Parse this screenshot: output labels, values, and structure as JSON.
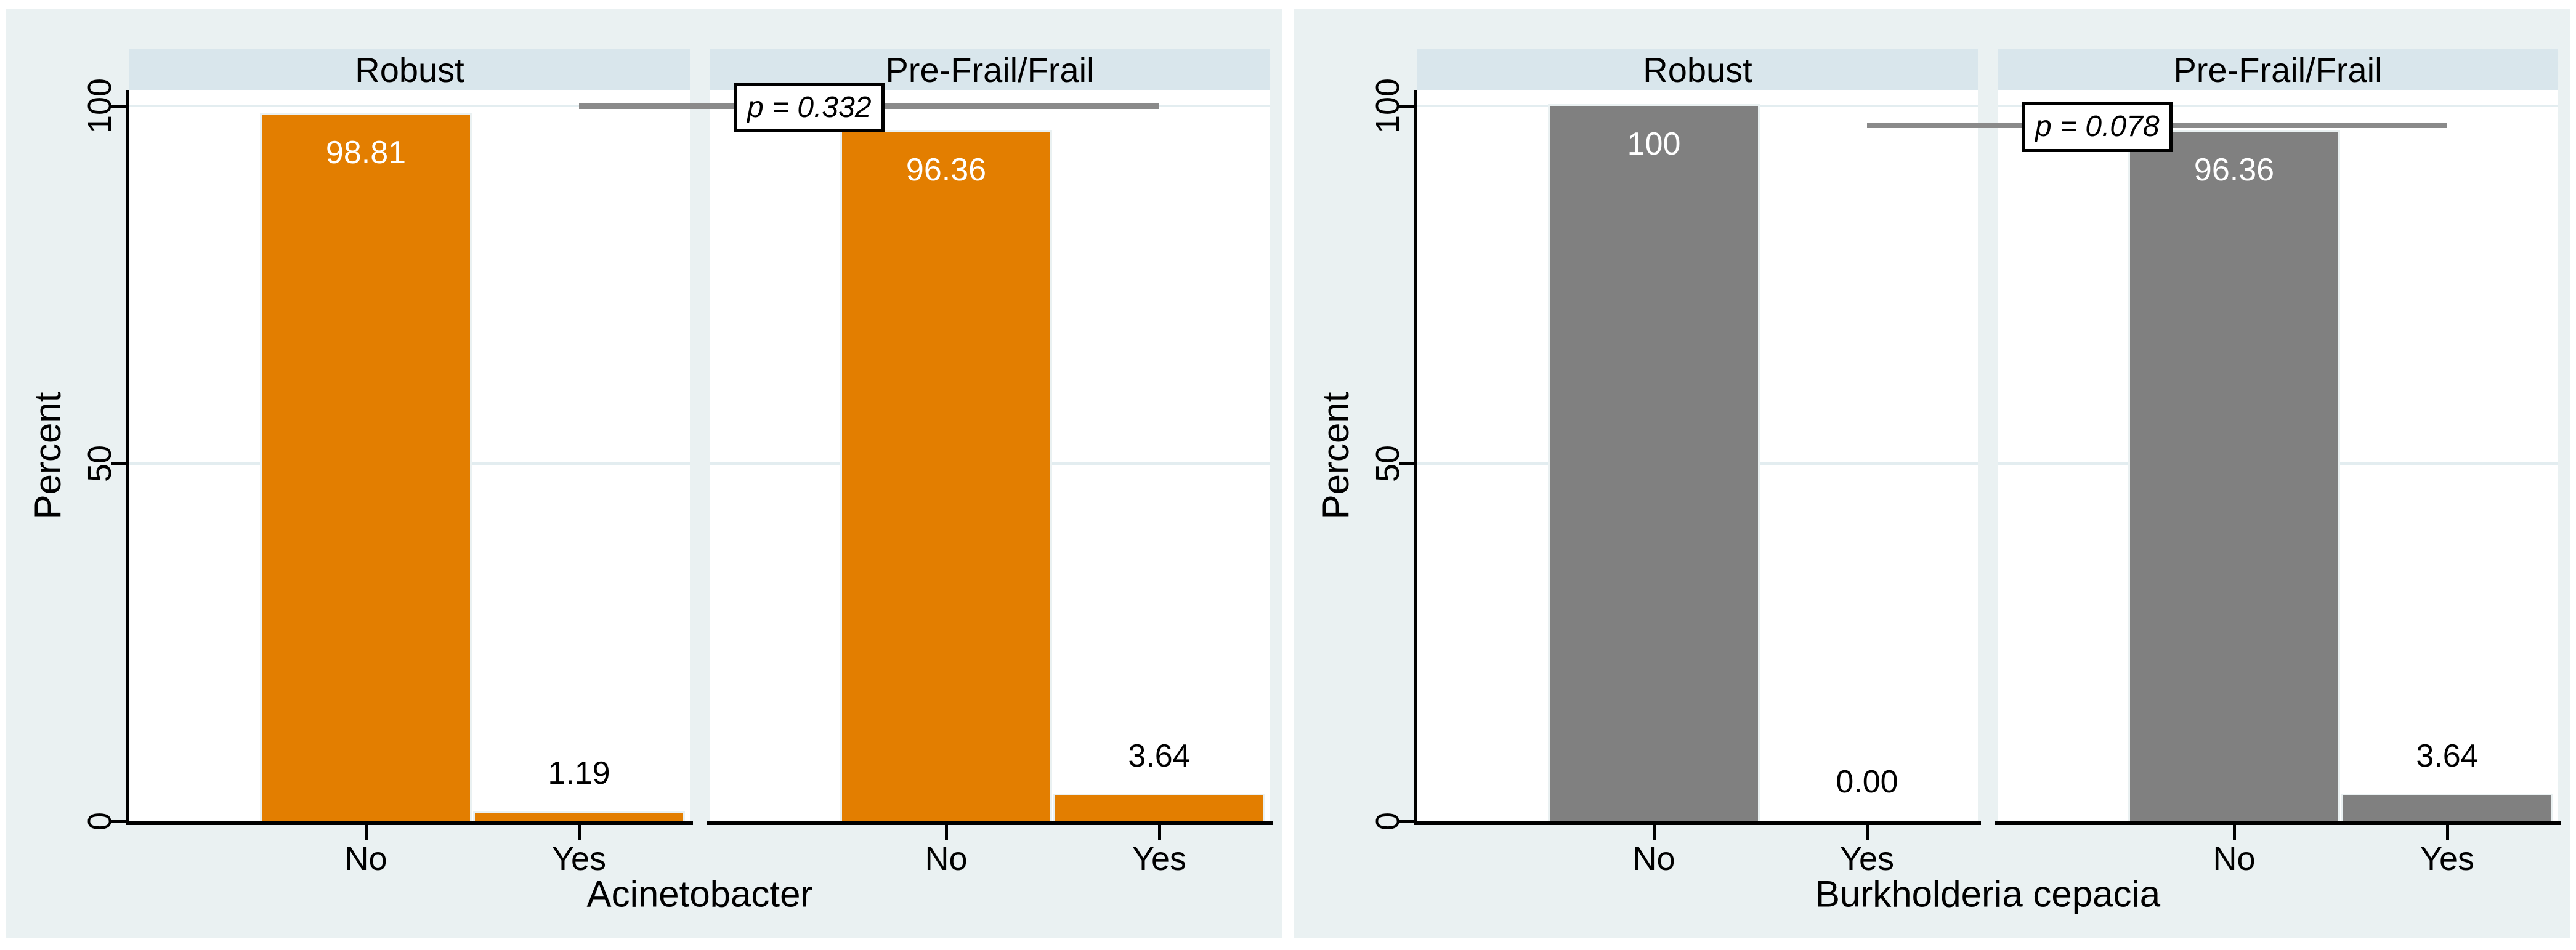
{
  "colors": {
    "page_background": "#ffffff",
    "chart_background": "#eaf1f2",
    "panel_header": "#d9e6ec",
    "plot_background": "#ffffff",
    "gridline": "#e3edf0",
    "axis": "#000000",
    "p_line": "#8a8a8a",
    "bar_orange": "#e37e00",
    "bar_gray": "#808080",
    "bar_label_inside": "#ffffff",
    "bar_label_outside": "#000000"
  },
  "chart_data": [
    {
      "type": "bar",
      "title": "",
      "xlabel": "Acinetobacter",
      "ylabel": "Percent",
      "ylim": [
        0,
        100
      ],
      "yticks": [
        0,
        50,
        100
      ],
      "ytick_labels": [
        "0",
        "50",
        "100"
      ],
      "grid": true,
      "legend": "none",
      "bar_color": "#e37e00",
      "annotation": {
        "p_label": "p = 0.332",
        "p_line_percent": 100
      },
      "panels": [
        {
          "label": "Robust",
          "categories": [
            "No",
            "Yes"
          ],
          "values": [
            98.81,
            1.19
          ],
          "bar_labels": [
            "98.81",
            "1.19"
          ]
        },
        {
          "label": "Pre-Frail/Frail",
          "categories": [
            "No",
            "Yes"
          ],
          "values": [
            96.36,
            3.64
          ],
          "bar_labels": [
            "96.36",
            "3.64"
          ]
        }
      ]
    },
    {
      "type": "bar",
      "title": "",
      "xlabel": "Burkholderia cepacia",
      "ylabel": "Percent",
      "ylim": [
        0,
        100
      ],
      "yticks": [
        0,
        50,
        100
      ],
      "ytick_labels": [
        "0",
        "50",
        "100"
      ],
      "grid": true,
      "legend": "none",
      "bar_color": "#808080",
      "annotation": {
        "p_label": "p = 0.078",
        "p_line_percent": 97.3
      },
      "panels": [
        {
          "label": "Robust",
          "categories": [
            "No",
            "Yes"
          ],
          "values": [
            100,
            0
          ],
          "bar_labels": [
            "100",
            "0.00"
          ]
        },
        {
          "label": "Pre-Frail/Frail",
          "categories": [
            "No",
            "Yes"
          ],
          "values": [
            96.36,
            3.64
          ],
          "bar_labels": [
            "96.36",
            "3.64"
          ]
        }
      ]
    }
  ]
}
